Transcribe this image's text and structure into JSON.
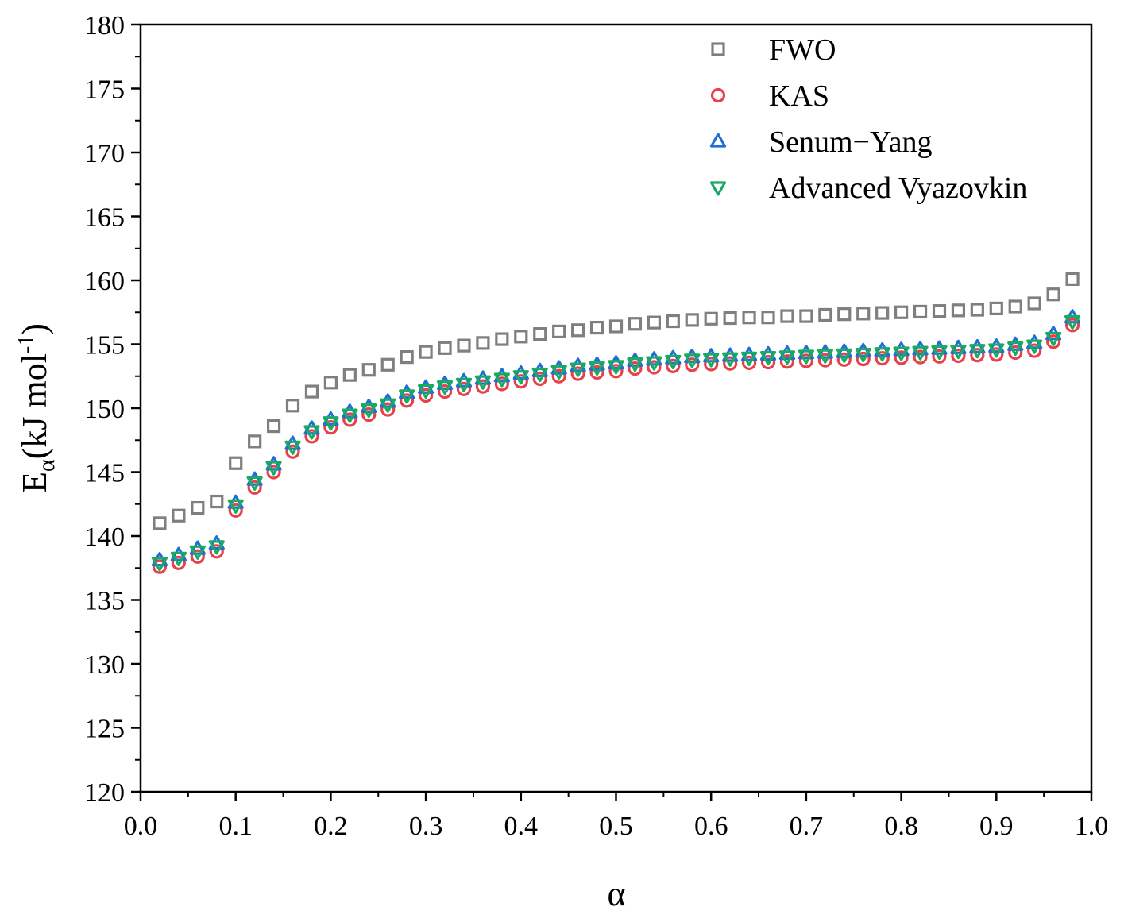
{
  "chart_data": {
    "type": "scatter",
    "title": "",
    "xlabel": "α",
    "ylabel": {
      "base": "E",
      "sub": "α",
      "unit_open": "(kJ mol",
      "unit_sup": "-1",
      "unit_close": ")"
    },
    "xlim": [
      0.0,
      1.0
    ],
    "ylim": [
      120,
      180
    ],
    "x_ticks": [
      "0.0",
      "0.1",
      "0.2",
      "0.3",
      "0.4",
      "0.5",
      "0.6",
      "0.7",
      "0.8",
      "0.9",
      "1.0"
    ],
    "y_ticks": [
      "120",
      "125",
      "130",
      "135",
      "140",
      "145",
      "150",
      "155",
      "160",
      "165",
      "170",
      "175",
      "180"
    ],
    "legend_position": "top-right",
    "grid": false,
    "x": [
      0.02,
      0.04,
      0.06,
      0.08,
      0.1,
      0.12,
      0.14,
      0.16,
      0.18,
      0.2,
      0.22,
      0.24,
      0.26,
      0.28,
      0.3,
      0.32,
      0.34,
      0.36,
      0.38,
      0.4,
      0.42,
      0.44,
      0.46,
      0.48,
      0.5,
      0.52,
      0.54,
      0.56,
      0.58,
      0.6,
      0.62,
      0.64,
      0.66,
      0.68,
      0.7,
      0.72,
      0.74,
      0.76,
      0.78,
      0.8,
      0.82,
      0.84,
      0.86,
      0.88,
      0.9,
      0.92,
      0.94,
      0.96,
      0.98
    ],
    "series": [
      {
        "name": "FWO",
        "marker": "square",
        "color": "#7f7f7f",
        "values": [
          141.0,
          141.6,
          142.2,
          142.7,
          145.7,
          147.4,
          148.6,
          150.2,
          151.3,
          152.0,
          152.6,
          153.0,
          153.4,
          154.0,
          154.4,
          154.7,
          154.9,
          155.1,
          155.4,
          155.6,
          155.8,
          156.0,
          156.1,
          156.3,
          156.4,
          156.6,
          156.7,
          156.8,
          156.9,
          157.0,
          157.05,
          157.1,
          157.1,
          157.2,
          157.2,
          157.3,
          157.35,
          157.4,
          157.45,
          157.5,
          157.55,
          157.6,
          157.65,
          157.7,
          157.8,
          157.95,
          158.2,
          158.9,
          160.1
        ]
      },
      {
        "name": "KAS",
        "marker": "circle",
        "color": "#e8414b",
        "values": [
          137.6,
          137.9,
          138.4,
          138.8,
          142.0,
          143.8,
          145.0,
          146.6,
          147.8,
          148.5,
          149.1,
          149.5,
          149.9,
          150.6,
          151.0,
          151.3,
          151.5,
          151.7,
          151.9,
          152.1,
          152.3,
          152.5,
          152.7,
          152.8,
          152.9,
          153.1,
          153.2,
          153.3,
          153.4,
          153.45,
          153.5,
          153.55,
          153.6,
          153.65,
          153.7,
          153.75,
          153.8,
          153.85,
          153.9,
          153.95,
          154.0,
          154.05,
          154.1,
          154.15,
          154.2,
          154.35,
          154.5,
          155.2,
          156.5
        ]
      },
      {
        "name": "Senum−Yang",
        "marker": "triangle-up",
        "color": "#1f6fd6",
        "values": [
          138.1,
          138.5,
          139.0,
          139.4,
          142.6,
          144.4,
          145.6,
          147.2,
          148.4,
          149.1,
          149.7,
          150.1,
          150.5,
          151.2,
          151.6,
          151.9,
          152.1,
          152.3,
          152.5,
          152.7,
          152.9,
          153.1,
          153.3,
          153.4,
          153.5,
          153.7,
          153.8,
          153.9,
          154.0,
          154.05,
          154.1,
          154.15,
          154.2,
          154.25,
          154.3,
          154.35,
          154.4,
          154.45,
          154.5,
          154.55,
          154.6,
          154.65,
          154.7,
          154.75,
          154.8,
          154.95,
          155.1,
          155.8,
          157.1
        ]
      },
      {
        "name": "Advanced Vyazovkin",
        "marker": "triangle-down",
        "color": "#1aaa63",
        "values": [
          137.9,
          138.3,
          138.8,
          139.2,
          142.4,
          144.2,
          145.4,
          147.0,
          148.2,
          148.9,
          149.5,
          149.9,
          150.3,
          151.0,
          151.4,
          151.7,
          151.9,
          152.1,
          152.3,
          152.5,
          152.7,
          152.9,
          153.1,
          153.2,
          153.3,
          153.5,
          153.6,
          153.7,
          153.8,
          153.85,
          153.9,
          153.95,
          154.0,
          154.05,
          154.1,
          154.15,
          154.2,
          154.25,
          154.3,
          154.35,
          154.4,
          154.45,
          154.5,
          154.55,
          154.6,
          154.75,
          154.9,
          155.5,
          156.8
        ]
      }
    ]
  }
}
